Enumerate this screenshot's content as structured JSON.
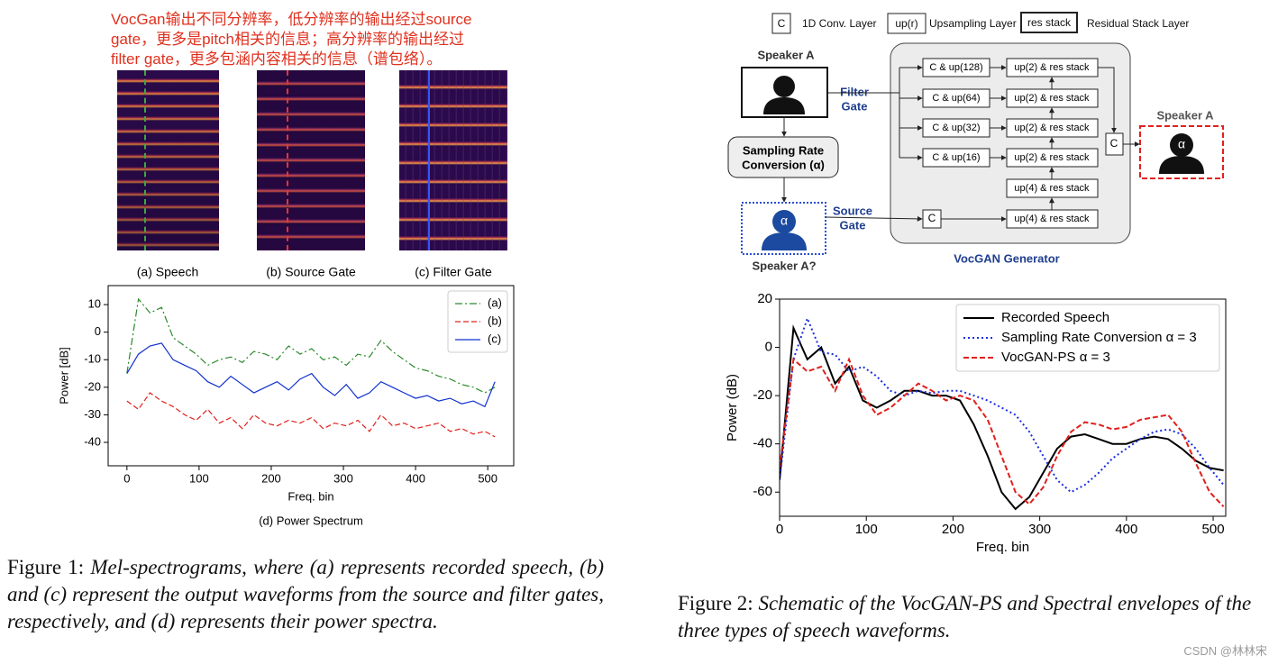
{
  "annotation": [
    "VocGan输出不同分辨率，低分辨率的输出经过source",
    "gate，更多是pitch相关的信息；高分辨率的输出经过",
    "filter gate，更多包涵内容相关的信息（谱包络）。"
  ],
  "figure1": {
    "panels": [
      "(a) Speech",
      "(b) Source Gate",
      "(c) Filter Gate"
    ],
    "caption_label": "Figure 1:",
    "caption_text": "Mel-spectrograms, where (a) represents recorded speech, (b) and (c) represent the output waveforms from the source and filter gates, respectively, and (d) represents their power spectra."
  },
  "diagram": {
    "legend": [
      {
        "symbol": "C",
        "label": "1D Conv. Layer"
      },
      {
        "symbol": "up(r)",
        "label": "Upsampling Layer"
      },
      {
        "symbol": "res stack",
        "label": "Residual Stack Layer"
      }
    ],
    "input_speaker": "Speaker A",
    "filter_gate": [
      "Filter",
      "Gate"
    ],
    "source_gate": [
      "Source",
      "Gate"
    ],
    "sampling_rate_conversion": [
      "Sampling Rate",
      "Conversion (α)"
    ],
    "alpha": "α",
    "converted_speaker": "Speaker A?",
    "conv_blocks": [
      "C & up(128)",
      "C & up(64)",
      "C & up(32)",
      "C & up(16)"
    ],
    "source_conv": "C",
    "res_blocks": [
      "up(2) & res stack",
      "up(2) & res stack",
      "up(2) & res stack",
      "up(2) & res stack",
      "up(4) & res stack",
      "up(4) & res stack"
    ],
    "concat": "C",
    "output_speaker": "Speaker A",
    "generator": "VocGAN Generator"
  },
  "figure2": {
    "caption_label": "Figure 2:",
    "caption_text": "Schematic of the VocGAN-PS and Spectral envelopes of the three types of speech waveforms."
  },
  "watermark": "CSDN @林林宋",
  "chart_data": [
    {
      "type": "line",
      "caption": "(d) Power Spectrum",
      "x_label": "Freq. bin",
      "y_label": "Power [dB]",
      "x": [
        0,
        16,
        32,
        48,
        64,
        80,
        96,
        112,
        128,
        144,
        160,
        176,
        192,
        208,
        224,
        240,
        256,
        272,
        288,
        304,
        320,
        336,
        352,
        368,
        384,
        400,
        416,
        432,
        448,
        464,
        480,
        496,
        510
      ],
      "xlim": [
        -26,
        536
      ],
      "ylim": [
        -48.5,
        16.9
      ],
      "xticks": [
        0,
        100,
        200,
        300,
        400,
        500
      ],
      "yticks": [
        10,
        0,
        -10,
        -20,
        -30,
        -40
      ],
      "grid": false,
      "legend": "upper right",
      "series": [
        {
          "name": "(a)",
          "color": "#2a8a2a",
          "linestyle": "dashdot",
          "values": [
            -15,
            12,
            7,
            9,
            -2,
            -5,
            -8,
            -12,
            -10,
            -9,
            -11,
            -7,
            -8,
            -10,
            -5,
            -8,
            -6,
            -10,
            -9,
            -12,
            -8,
            -9,
            -3,
            -7,
            -10,
            -13,
            -14,
            -16,
            -17,
            -19,
            -20,
            -22,
            -20
          ]
        },
        {
          "name": "(b)",
          "color": "#e0201c",
          "linestyle": "dashed",
          "values": [
            -25,
            -28,
            -22,
            -25,
            -27,
            -30,
            -32,
            -28,
            -33,
            -31,
            -35,
            -30,
            -33,
            -34,
            -32,
            -33,
            -31,
            -35,
            -33,
            -34,
            -32,
            -36,
            -30,
            -34,
            -33,
            -35,
            -34,
            -33,
            -36,
            -35,
            -37,
            -36,
            -38
          ]
        },
        {
          "name": "(c)",
          "color": "#1030d0",
          "linestyle": "solid",
          "values": [
            -15,
            -8,
            -5,
            -4,
            -10,
            -12,
            -14,
            -18,
            -20,
            -16,
            -19,
            -22,
            -20,
            -18,
            -21,
            -17,
            -15,
            -20,
            -23,
            -19,
            -24,
            -22,
            -18,
            -20,
            -22,
            -24,
            -23,
            -25,
            -24,
            -26,
            -25,
            -27,
            -18
          ]
        }
      ]
    },
    {
      "type": "line",
      "x_label": "Freq. bin",
      "y_label": "Power (dB)",
      "x": [
        0,
        16,
        32,
        48,
        64,
        80,
        96,
        112,
        128,
        144,
        160,
        176,
        192,
        208,
        224,
        240,
        256,
        272,
        288,
        304,
        320,
        336,
        352,
        368,
        384,
        400,
        416,
        432,
        448,
        464,
        480,
        496,
        512
      ],
      "xlim": [
        0,
        514.5
      ],
      "ylim": [
        -70,
        20
      ],
      "xticks": [
        0,
        100,
        200,
        300,
        400,
        500
      ],
      "yticks": [
        20,
        0,
        -20,
        -40,
        -60
      ],
      "grid": false,
      "legend": "upper right",
      "series": [
        {
          "name": "Recorded Speech",
          "color": "#000000",
          "linestyle": "solid",
          "values": [
            -55,
            8,
            -5,
            0,
            -15,
            -8,
            -22,
            -25,
            -22,
            -18,
            -18,
            -20,
            -20,
            -22,
            -32,
            -45,
            -60,
            -67,
            -62,
            -52,
            -42,
            -37,
            -36,
            -38,
            -40,
            -40,
            -38,
            -37,
            -38,
            -42,
            -47,
            -50,
            -51
          ]
        },
        {
          "name": "Sampling Rate Conversion α = 3",
          "color": "#1a2ee0",
          "linestyle": "dotted",
          "values": [
            -55,
            -5,
            12,
            -2,
            -3,
            -10,
            -8,
            -12,
            -18,
            -20,
            -18,
            -19,
            -18,
            -18,
            -20,
            -22,
            -25,
            -28,
            -35,
            -45,
            -55,
            -60,
            -57,
            -52,
            -46,
            -42,
            -38,
            -35,
            -34,
            -36,
            -42,
            -50,
            -57
          ]
        },
        {
          "name": "VocGAN-PS α = 3",
          "color": "#e0201c",
          "linestyle": "dashed",
          "values": [
            -50,
            -5,
            -10,
            -8,
            -18,
            -5,
            -20,
            -28,
            -25,
            -20,
            -15,
            -18,
            -22,
            -20,
            -22,
            -30,
            -45,
            -60,
            -65,
            -58,
            -45,
            -35,
            -31,
            -32,
            -34,
            -33,
            -30,
            -29,
            -28,
            -35,
            -48,
            -60,
            -66
          ]
        }
      ]
    }
  ]
}
